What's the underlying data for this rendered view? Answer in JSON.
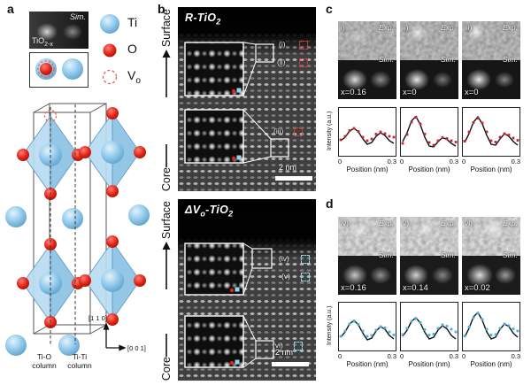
{
  "colors": {
    "ti_blue": "#8fc8ea",
    "o_red": "#e02315",
    "vacancy_red": "#e06055",
    "sim_black": "#111111",
    "exp_red": "#c1272d",
    "exp_blue": "#45b0e0",
    "marker_box_red": "#cc4040",
    "marker_box_cyan": "#8fd8ef"
  },
  "panel_labels": {
    "a": "a",
    "b": "b",
    "c": "c",
    "d": "d"
  },
  "panel_a": {
    "sim_label": "Sim.",
    "material_base": "TiO",
    "material_sub": "2-x",
    "legend": [
      {
        "symbol": "Ti",
        "sub": ""
      },
      {
        "symbol": "O",
        "sub": ""
      },
      {
        "symbol": "V",
        "sub": "o"
      }
    ],
    "column_labels": {
      "left_line1": "Ti-O",
      "left_line2": "column",
      "right_line1": "Ti-Ti",
      "right_line2": "column"
    },
    "axis_vertical": "[1 1 0]",
    "axis_horizontal": "[0 0 1]"
  },
  "panel_b": {
    "top": {
      "title_p1": "R-TiO",
      "title_s1": "2",
      "title_p2": "",
      "title_s2": "",
      "surface_label": "Surface",
      "core_label": "Core",
      "markers": [
        {
          "label": "(i)"
        },
        {
          "label": "(ii)"
        },
        {
          "label": "(iii)"
        }
      ],
      "scale_label": "2 nm"
    },
    "bottom": {
      "title_p1": "ΔV",
      "title_s1": "o",
      "title_p2": "-TiO",
      "title_s2": "2",
      "surface_label": "Surface",
      "core_label": "Core",
      "markers": [
        {
          "label": "(iv)"
        },
        {
          "label": "(v)"
        },
        {
          "label": "(vi)"
        }
      ],
      "scale_label": "2 nm"
    }
  },
  "panel_c": {
    "tiles": [
      {
        "id": "i)",
        "exp": "Exp.",
        "sim": "Sim.",
        "x": "x=0.16"
      },
      {
        "id": "ii)",
        "exp": "Exp.",
        "sim": "Sim.",
        "x": "x=0"
      },
      {
        "id": "iii)",
        "exp": "Exp.",
        "sim": "Sim.",
        "x": "x=0"
      }
    ]
  },
  "panel_d": {
    "tiles": [
      {
        "id": "iv)",
        "exp": "Exp.",
        "sim": "Sim.",
        "x": "x=0.16"
      },
      {
        "id": "v)",
        "exp": "Exp.",
        "sim": "Sim.",
        "x": "x=0.14"
      },
      {
        "id": "vi)",
        "exp": "Exp.",
        "sim": "Sim.",
        "x": "x=0.02"
      }
    ]
  },
  "chart_data": [
    {
      "id": "c-i",
      "type": "line",
      "xlabel": "Position (nm)",
      "ylabel": "Intensity (a.u.)",
      "xlim": [
        0,
        0.3
      ],
      "xticks": [
        "0",
        "0.3"
      ],
      "x": [
        0,
        0.025,
        0.05,
        0.075,
        0.1,
        0.125,
        0.15,
        0.175,
        0.2,
        0.225,
        0.25,
        0.275,
        0.3
      ],
      "series": [
        {
          "name": "Sim.",
          "style": "line",
          "color_key": "sim_black",
          "values": [
            0.3,
            0.38,
            0.52,
            0.58,
            0.5,
            0.34,
            0.22,
            0.26,
            0.4,
            0.48,
            0.42,
            0.3,
            0.24
          ]
        },
        {
          "name": "Exp.",
          "style": "markers",
          "color_key": "exp_red",
          "values": [
            0.32,
            0.4,
            0.53,
            0.58,
            0.51,
            0.38,
            0.3,
            0.34,
            0.45,
            0.5,
            0.46,
            0.4,
            0.38
          ]
        }
      ]
    },
    {
      "id": "c-ii",
      "type": "line",
      "xlabel": "Position (nm)",
      "xlim": [
        0,
        0.3
      ],
      "xticks": [
        "0",
        "0.3"
      ],
      "x": [
        0,
        0.025,
        0.05,
        0.075,
        0.1,
        0.125,
        0.15,
        0.175,
        0.2,
        0.225,
        0.25,
        0.275,
        0.3
      ],
      "series": [
        {
          "name": "Sim.",
          "style": "line",
          "color_key": "sim_black",
          "values": [
            0.28,
            0.48,
            0.75,
            0.85,
            0.66,
            0.38,
            0.18,
            0.16,
            0.28,
            0.37,
            0.33,
            0.24,
            0.18
          ]
        },
        {
          "name": "Exp.",
          "style": "markers",
          "color_key": "exp_red",
          "values": [
            0.24,
            0.44,
            0.72,
            0.83,
            0.68,
            0.45,
            0.26,
            0.2,
            0.3,
            0.37,
            0.35,
            0.3,
            0.27
          ]
        }
      ]
    },
    {
      "id": "c-iii",
      "type": "line",
      "xlabel": "Position (nm)",
      "xlim": [
        0,
        0.3
      ],
      "xticks": [
        "0",
        "0.3"
      ],
      "x": [
        0,
        0.025,
        0.05,
        0.075,
        0.1,
        0.125,
        0.15,
        0.175,
        0.2,
        0.225,
        0.25,
        0.275,
        0.3
      ],
      "series": [
        {
          "name": "Sim.",
          "style": "line",
          "color_key": "sim_black",
          "values": [
            0.26,
            0.46,
            0.72,
            0.84,
            0.68,
            0.42,
            0.22,
            0.2,
            0.34,
            0.46,
            0.4,
            0.28,
            0.2
          ]
        },
        {
          "name": "Exp.",
          "style": "markers",
          "color_key": "exp_red",
          "values": [
            0.29,
            0.5,
            0.71,
            0.81,
            0.7,
            0.5,
            0.3,
            0.27,
            0.38,
            0.46,
            0.43,
            0.36,
            0.31
          ]
        }
      ]
    },
    {
      "id": "d-iv",
      "type": "line",
      "xlabel": "Position (nm)",
      "ylabel": "Intensity (a.u.)",
      "xlim": [
        0,
        0.3
      ],
      "xticks": [
        "0",
        "0.3"
      ],
      "x": [
        0,
        0.025,
        0.05,
        0.075,
        0.1,
        0.125,
        0.15,
        0.175,
        0.2,
        0.225,
        0.25,
        0.275,
        0.3
      ],
      "series": [
        {
          "name": "Sim.",
          "style": "line",
          "color_key": "sim_black",
          "values": [
            0.26,
            0.38,
            0.56,
            0.64,
            0.54,
            0.35,
            0.2,
            0.24,
            0.4,
            0.5,
            0.44,
            0.3,
            0.22
          ]
        },
        {
          "name": "Exp.",
          "style": "markers",
          "color_key": "exp_blue",
          "values": [
            0.28,
            0.4,
            0.56,
            0.62,
            0.55,
            0.4,
            0.28,
            0.3,
            0.42,
            0.5,
            0.47,
            0.38,
            0.31
          ]
        }
      ]
    },
    {
      "id": "d-v",
      "type": "line",
      "xlabel": "Position (nm)",
      "xlim": [
        0,
        0.3
      ],
      "xticks": [
        "0",
        "0.3"
      ],
      "x": [
        0,
        0.025,
        0.05,
        0.075,
        0.1,
        0.125,
        0.15,
        0.175,
        0.2,
        0.225,
        0.25,
        0.275,
        0.3
      ],
      "series": [
        {
          "name": "Sim.",
          "style": "line",
          "color_key": "sim_black",
          "values": [
            0.28,
            0.42,
            0.62,
            0.7,
            0.58,
            0.37,
            0.22,
            0.26,
            0.42,
            0.52,
            0.45,
            0.3,
            0.22
          ]
        },
        {
          "name": "Exp.",
          "style": "markers",
          "color_key": "exp_blue",
          "values": [
            0.32,
            0.46,
            0.62,
            0.68,
            0.59,
            0.43,
            0.31,
            0.33,
            0.46,
            0.54,
            0.51,
            0.44,
            0.38
          ]
        }
      ]
    },
    {
      "id": "d-vi",
      "type": "line",
      "xlabel": "Position (nm)",
      "xlim": [
        0,
        0.3
      ],
      "xticks": [
        "0",
        "0.3"
      ],
      "x": [
        0,
        0.025,
        0.05,
        0.075,
        0.1,
        0.125,
        0.15,
        0.175,
        0.2,
        0.225,
        0.25,
        0.275,
        0.3
      ],
      "series": [
        {
          "name": "Sim.",
          "style": "line",
          "color_key": "sim_black",
          "values": [
            0.26,
            0.46,
            0.72,
            0.82,
            0.64,
            0.38,
            0.22,
            0.26,
            0.44,
            0.56,
            0.5,
            0.35,
            0.26
          ]
        },
        {
          "name": "Exp.",
          "style": "markers",
          "color_key": "exp_blue",
          "values": [
            0.29,
            0.49,
            0.7,
            0.8,
            0.66,
            0.44,
            0.31,
            0.32,
            0.46,
            0.56,
            0.52,
            0.45,
            0.4
          ]
        }
      ]
    }
  ]
}
